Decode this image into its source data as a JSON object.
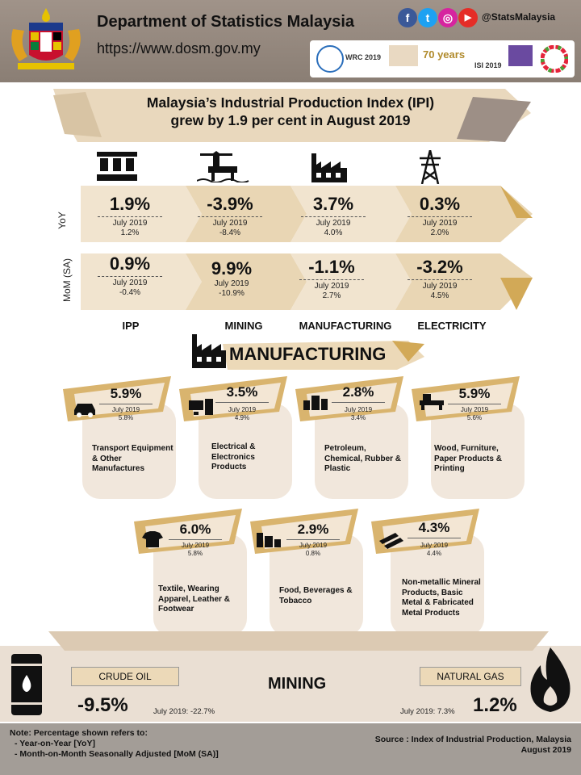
{
  "header": {
    "org_name": "Department of Statistics Malaysia",
    "url": "https://www.dosm.gov.my",
    "social_handle": "@StatsMalaysia",
    "social_icons": [
      "facebook-icon",
      "twitter-icon",
      "instagram-icon",
      "youtube-icon"
    ],
    "partner_logos": [
      "WRC 2019",
      "70 years",
      "ISI 2019",
      "SDG"
    ]
  },
  "title": {
    "line1": "Malaysia’s Industrial Production Index (IPI)",
    "line2": "grew by 1.9 per cent in August 2019"
  },
  "ipi": {
    "row_labels": {
      "yoy": "YoY",
      "mom": "MoM (SA)"
    },
    "columns": [
      {
        "name": "IPP",
        "icon": "industrial-machine-icon",
        "yoy": {
          "value": "1.9%",
          "prev_label": "July 2019",
          "prev_value": "1.2%"
        },
        "mom": {
          "value": "0.9%",
          "prev_label": "July 2019",
          "prev_value": "-0.4%"
        }
      },
      {
        "name": "MINING",
        "icon": "oil-rig-icon",
        "yoy": {
          "value": "-3.9%",
          "prev_label": "July 2019",
          "prev_value": "-8.4%"
        },
        "mom": {
          "value": "9.9%",
          "prev_label": "July 2019",
          "prev_value": "-10.9%"
        }
      },
      {
        "name": "MANUFACTURING",
        "icon": "factory-icon",
        "yoy": {
          "value": "3.7%",
          "prev_label": "July 2019",
          "prev_value": "4.0%"
        },
        "mom": {
          "value": "-1.1%",
          "prev_label": "July 2019",
          "prev_value": "2.7%"
        }
      },
      {
        "name": "ELECTRICITY",
        "icon": "power-tower-icon",
        "yoy": {
          "value": "0.3%",
          "prev_label": "July 2019",
          "prev_value": "2.0%"
        },
        "mom": {
          "value": "-3.2%",
          "prev_label": "July 2019",
          "prev_value": "4.5%"
        }
      }
    ]
  },
  "manufacturing": {
    "title": "MANUFACTURING",
    "cards": [
      {
        "value": "5.9%",
        "prev": "July 2019",
        "prev_value": "5.8%",
        "label": "Transport Equipment & Other Manufactures",
        "icon": "car-icon"
      },
      {
        "value": "3.5%",
        "prev": "July 2019",
        "prev_value": "4.9%",
        "label": "Electrical & Electronics Products",
        "icon": "computer-icon"
      },
      {
        "value": "2.8%",
        "prev": "July 2019",
        "prev_value": "3.4%",
        "label": "Petroleum, Chemical, Rubber & Plastic",
        "icon": "barrels-icon"
      },
      {
        "value": "5.9%",
        "prev": "July 2019",
        "prev_value": "5.6%",
        "label": "Wood, Furniture, Paper Products & Printing",
        "icon": "furniture-icon"
      },
      {
        "value": "6.0%",
        "prev": "July 2019",
        "prev_value": "5.8%",
        "label": "Textile, Wearing Apparel, Leather & Footwear",
        "icon": "clothing-icon"
      },
      {
        "value": "2.9%",
        "prev": "July 2019",
        "prev_value": "0.8%",
        "label": "Food, Beverages & Tobacco",
        "icon": "food-icon"
      },
      {
        "value": "4.3%",
        "prev": "July 2019",
        "prev_value": "4.4%",
        "label": "Non-metallic Mineral Products, Basic Metal & Fabricated Metal Products",
        "icon": "metal-beams-icon"
      }
    ]
  },
  "mining": {
    "title": "MINING",
    "crude_oil": {
      "label": "CRUDE OIL",
      "value": "-9.5%",
      "prev": "July 2019: -22.7%",
      "icon": "oil-barrel-icon"
    },
    "natural_gas": {
      "label": "NATURAL GAS",
      "value": "1.2%",
      "prev": "July 2019: 7.3%",
      "icon": "flame-icon"
    }
  },
  "footer": {
    "note_title": "Note: Percentage shown refers to:",
    "note_items": [
      "- Year-on-Year [YoY]",
      "- Month-on-Month  Seasonally Adjusted  [MoM (SA)]"
    ],
    "source_line1": "Source : Index of Industrial Production, Malaysia",
    "source_line2": "August 2019"
  },
  "colors": {
    "gold": "#d9b46e",
    "beige": "#ead5b3",
    "header": "#9b8f85",
    "footer": "#a39d97"
  }
}
